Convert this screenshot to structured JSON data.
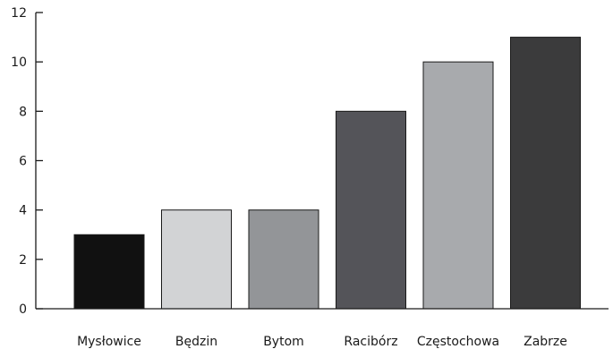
{
  "chart_data": {
    "type": "bar",
    "categories": [
      "Mysłowice",
      "Będzin",
      "Bytom",
      "Racibórz",
      "Częstochowa",
      "Zabrze"
    ],
    "values": [
      3,
      4,
      4,
      8,
      10,
      11
    ],
    "colors": [
      "#111111",
      "#d2d3d5",
      "#939598",
      "#545459",
      "#a8aaad",
      "#3b3b3c"
    ],
    "ylim": [
      0,
      12
    ],
    "yticks": [
      0,
      2,
      4,
      6,
      8,
      10,
      12
    ],
    "grid": false,
    "legend": "none"
  }
}
